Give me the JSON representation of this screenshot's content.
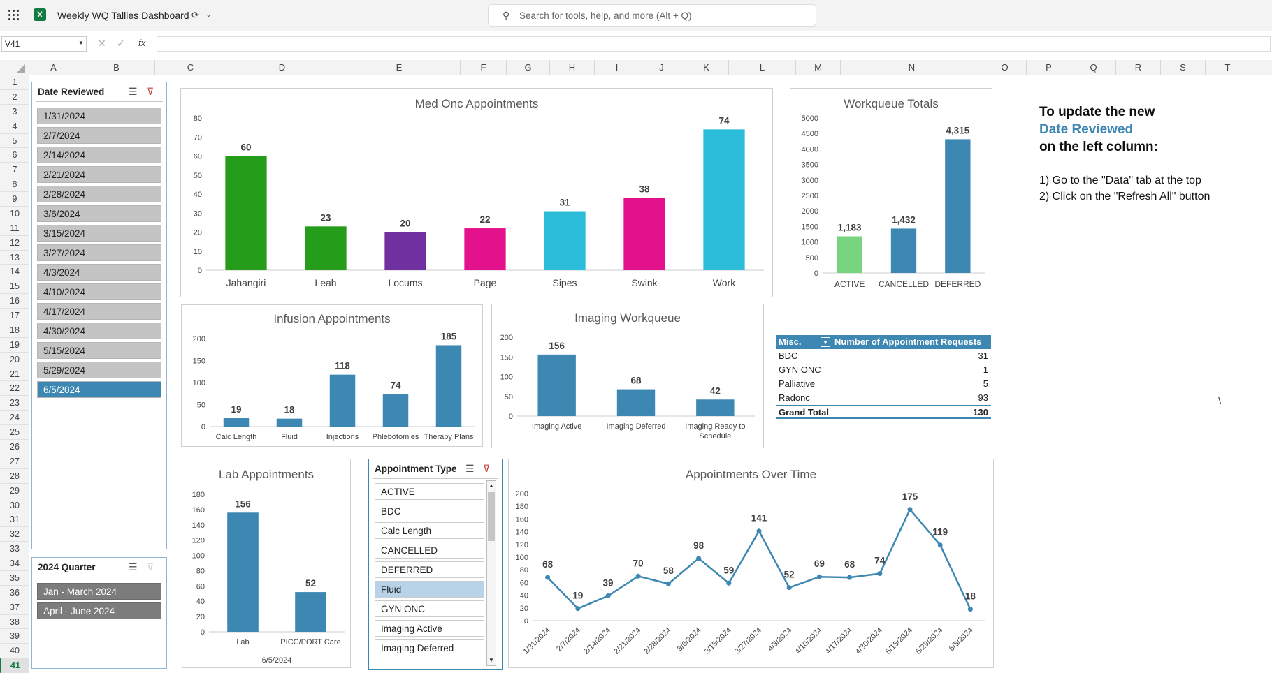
{
  "window": {
    "title": "Weekly WQ Tallies Dashboard",
    "search_placeholder": "Search for tools, help, and more (Alt + Q)"
  },
  "formula_bar": {
    "name_box": "V41",
    "fx": "fx",
    "value": ""
  },
  "columns": [
    "A",
    "B",
    "C",
    "D",
    "E",
    "F",
    "G",
    "H",
    "I",
    "J",
    "K",
    "L",
    "M",
    "N",
    "O",
    "P",
    "Q",
    "R",
    "S",
    "T"
  ],
  "rows": [
    "1",
    "2",
    "3",
    "4",
    "5",
    "6",
    "7",
    "8",
    "9",
    "10",
    "11",
    "12",
    "13",
    "14",
    "15",
    "16",
    "17",
    "18",
    "19",
    "20",
    "21",
    "22",
    "23",
    "24",
    "25",
    "26",
    "27",
    "28",
    "29",
    "30",
    "31",
    "32",
    "33",
    "34",
    "35",
    "36",
    "37",
    "38",
    "39",
    "40",
    "41"
  ],
  "selected_row": "41",
  "slicers": {
    "date_reviewed": {
      "title": "Date Reviewed",
      "items": [
        "1/31/2024",
        "2/7/2024",
        "2/14/2024",
        "2/21/2024",
        "2/28/2024",
        "3/6/2024",
        "3/15/2024",
        "3/27/2024",
        "4/3/2024",
        "4/10/2024",
        "4/17/2024",
        "4/30/2024",
        "5/15/2024",
        "5/29/2024",
        "6/5/2024"
      ],
      "selected": "6/5/2024"
    },
    "quarter": {
      "title": "2024 Quarter",
      "items": [
        "Jan - March 2024",
        "April - June 2024"
      ]
    },
    "appointment_type": {
      "title": "Appointment Type",
      "items": [
        "ACTIVE",
        "BDC",
        "Calc Length",
        "CANCELLED",
        "DEFERRED",
        "Fluid",
        "GYN ONC",
        "Imaging Active",
        "Imaging Deferred"
      ],
      "selected": "Fluid"
    }
  },
  "instructions": {
    "line1": "To update the new",
    "line2": "Date Reviewed",
    "line3": "on the left column:",
    "step1": "1) Go to the \"Data\" tab at the top",
    "step2": "2) Click on the \"Refresh All\" button",
    "stray": "\\"
  },
  "pivot": {
    "header_left": "Misc.",
    "header_right": "Number of Appointment Requests",
    "rows": [
      {
        "label": "BDC",
        "value": "31"
      },
      {
        "label": "GYN ONC",
        "value": "1"
      },
      {
        "label": "Palliative",
        "value": "5"
      },
      {
        "label": "Radonc",
        "value": "93"
      }
    ],
    "total_label": "Grand Total",
    "total_value": "130"
  },
  "chart_data": [
    {
      "id": "medonc",
      "type": "bar",
      "title": "Med Onc Appointments",
      "categories": [
        "Jahangiri",
        "Leah",
        "Locums",
        "Page",
        "Sipes",
        "Swink",
        "Work"
      ],
      "values": [
        60,
        23,
        20,
        22,
        31,
        38,
        74
      ],
      "colors": [
        "#259d1b",
        "#259d1b",
        "#7030a0",
        "#e3128c",
        "#2bbcd9",
        "#e3128c",
        "#2bbcd9"
      ],
      "ylim": [
        0,
        80
      ],
      "yticks": [
        0,
        10,
        20,
        30,
        40,
        50,
        60,
        70,
        80
      ]
    },
    {
      "id": "wq",
      "type": "bar",
      "title": "Workqueue Totals",
      "categories": [
        "ACTIVE",
        "CANCELLED",
        "DEFERRED"
      ],
      "values": [
        1183,
        1432,
        4315
      ],
      "labels": [
        "1,183",
        "1,432",
        "4,315"
      ],
      "colors": [
        "#77d47f",
        "#3d87b3",
        "#3d87b3"
      ],
      "ylim": [
        0,
        5000
      ],
      "yticks": [
        0,
        500,
        1000,
        1500,
        2000,
        2500,
        3000,
        3500,
        4000,
        4500,
        5000
      ]
    },
    {
      "id": "inf",
      "type": "bar",
      "title": "Infusion Appointments",
      "categories": [
        "Calc Length",
        "Fluid",
        "Injections",
        "Phlebotomies",
        "Therapy Plans"
      ],
      "values": [
        19,
        18,
        118,
        74,
        185
      ],
      "colors": [
        "#3d87b3"
      ],
      "ylim": [
        0,
        200
      ],
      "yticks": [
        0,
        50,
        100,
        150,
        200
      ]
    },
    {
      "id": "img",
      "type": "bar",
      "title": "Imaging Workqueue",
      "categories": [
        "Imaging Active",
        "Imaging Deferred",
        "Imaging Ready to Schedule"
      ],
      "values": [
        156,
        68,
        42
      ],
      "colors": [
        "#3d87b3"
      ],
      "ylim": [
        0,
        200
      ],
      "yticks": [
        0,
        50,
        100,
        150,
        200
      ]
    },
    {
      "id": "lab",
      "type": "bar",
      "title": "Lab Appointments",
      "categories": [
        "Lab",
        "PICC/PORT Care"
      ],
      "values": [
        156,
        52
      ],
      "colors": [
        "#3d87b3"
      ],
      "ylim": [
        0,
        180
      ],
      "yticks": [
        0,
        20,
        40,
        60,
        80,
        100,
        120,
        140,
        160,
        180
      ],
      "footer": "6/5/2024"
    },
    {
      "id": "time",
      "type": "line",
      "title": "Appointments Over Time",
      "categories": [
        "1/31/2024",
        "2/7/2024",
        "2/14/2024",
        "2/21/2024",
        "2/28/2024",
        "3/6/2024",
        "3/15/2024",
        "3/27/2024",
        "4/3/2024",
        "4/10/2024",
        "4/17/2024",
        "4/30/2024",
        "5/15/2024",
        "5/29/2024",
        "6/5/2024"
      ],
      "values": [
        68,
        19,
        39,
        70,
        58,
        98,
        59,
        141,
        52,
        69,
        68,
        74,
        175,
        119,
        18
      ],
      "colors": [
        "#3d87b3"
      ],
      "ylim": [
        0,
        200
      ],
      "yticks": [
        0,
        20,
        40,
        60,
        80,
        100,
        120,
        140,
        160,
        180,
        200
      ]
    }
  ]
}
